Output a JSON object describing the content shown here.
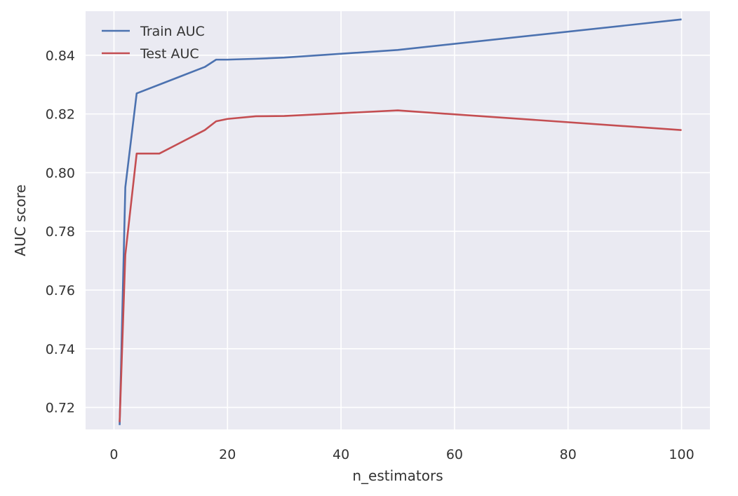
{
  "chart_data": {
    "type": "line",
    "title": "",
    "xlabel": "n_estimators",
    "ylabel": "AUC score",
    "xlim": [
      -5,
      105
    ],
    "ylim": [
      0.7125,
      0.855
    ],
    "x_ticks": [
      0,
      20,
      40,
      60,
      80,
      100
    ],
    "y_ticks": [
      0.72,
      0.74,
      0.76,
      0.78,
      0.8,
      0.82,
      0.84
    ],
    "x_tick_labels": [
      "0",
      "20",
      "40",
      "60",
      "80",
      "100"
    ],
    "y_tick_labels": [
      "0.72",
      "0.74",
      "0.76",
      "0.78",
      "0.80",
      "0.82",
      "0.84"
    ],
    "grid": true,
    "legend": "top-left",
    "background": "#EAEAF2",
    "grid_color": "#FFFFFF",
    "series": [
      {
        "name": "Train AUC",
        "color": "#4C72B0",
        "x": [
          1,
          2,
          4,
          8,
          16,
          18,
          20,
          25,
          30,
          50,
          100
        ],
        "y": [
          0.714,
          0.795,
          0.827,
          0.83,
          0.836,
          0.8385,
          0.8385,
          0.8388,
          0.8392,
          0.8418,
          0.8522
        ]
      },
      {
        "name": "Test AUC",
        "color": "#C44E52",
        "x": [
          1,
          2,
          4,
          8,
          16,
          18,
          20,
          25,
          30,
          50,
          100
        ],
        "y": [
          0.715,
          0.772,
          0.8065,
          0.8065,
          0.8145,
          0.8175,
          0.8183,
          0.8192,
          0.8193,
          0.8212,
          0.8145
        ]
      }
    ]
  }
}
